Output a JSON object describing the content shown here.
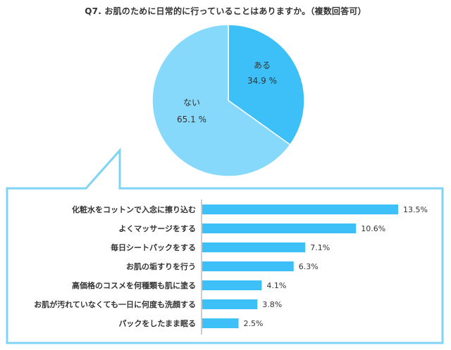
{
  "title": "Q7. お肌のために日常的に行っていることはありますか。（複数回答可）",
  "colors": {
    "pie_aru": "#3dbff7",
    "pie_nai": "#86d9fb",
    "bar": "#3dbff7",
    "callout_border": "#7fd4f5",
    "axis": "#999999"
  },
  "chart_data": [
    {
      "type": "pie",
      "slices": [
        {
          "label": "ある",
          "value": 34.9,
          "value_text": "34.9 %"
        },
        {
          "label": "ない",
          "value": 65.1,
          "value_text": "65.1 %"
        }
      ]
    },
    {
      "type": "bar",
      "orientation": "horizontal",
      "categories": [
        "化粧水をコットンで入念に擦り込む",
        "よくマッサージをする",
        "毎日シートパックをする",
        "お肌の垢すりを行う",
        "高価格のコスメを何種類も肌に塗る",
        "お肌が汚れていなくても一日に何度も洗顔する",
        "パックをしたまま眠る"
      ],
      "values": [
        13.5,
        10.6,
        7.1,
        6.3,
        4.1,
        3.8,
        2.5
      ],
      "value_labels": [
        "13.5%",
        "10.6%",
        "7.1%",
        "6.3%",
        "4.1%",
        "3.8%",
        "2.5%"
      ],
      "unit": "%",
      "xlim": [
        0,
        13.5
      ]
    }
  ]
}
